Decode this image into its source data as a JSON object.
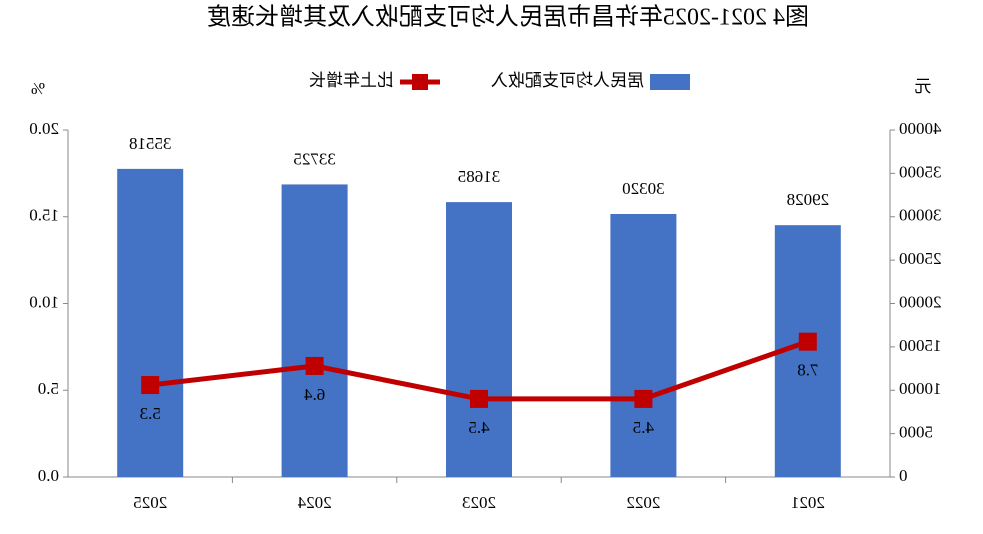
{
  "chart_data": {
    "type": "bar-line",
    "title": "图4  2021-2025年许昌市居民人均可支配收入及其增长速度",
    "y_unit": "元",
    "y2_unit": "%",
    "categories": [
      "2021",
      "2022",
      "2023",
      "2024",
      "2025"
    ],
    "series": [
      {
        "name": "居民人均可支配收入",
        "type": "bar",
        "color": "#4472c4",
        "values": [
          29028,
          30320,
          31685,
          33725,
          35518
        ]
      },
      {
        "name": "比上年增长",
        "type": "line",
        "axis": "y2",
        "color": "#c00000",
        "values": [
          7.8,
          4.5,
          4.5,
          6.4,
          5.3
        ]
      }
    ],
    "ylim": [
      0,
      40000
    ],
    "yticks": [
      0,
      5000,
      10000,
      15000,
      20000,
      25000,
      30000,
      35000,
      40000
    ],
    "y2lim": [
      0,
      20
    ],
    "y2ticks": [
      {
        "value": 0,
        "label": "0.0"
      },
      {
        "value": 5,
        "label": "5.0"
      },
      {
        "value": 10,
        "label": "10.0"
      },
      {
        "value": 15,
        "label": "15.0"
      },
      {
        "value": 20,
        "label": "20.0"
      }
    ],
    "mirrored": true
  }
}
